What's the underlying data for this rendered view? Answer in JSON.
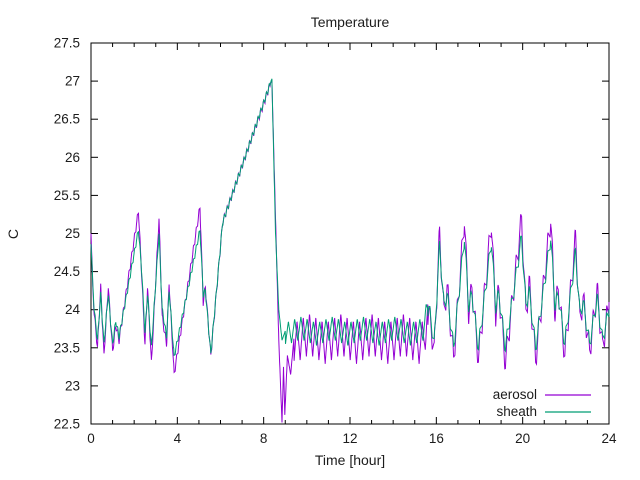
{
  "chart_data": {
    "type": "line",
    "title": "Temperature",
    "xlabel": "Time [hour]",
    "ylabel": "C",
    "xlim": [
      0,
      24
    ],
    "ylim": [
      22.5,
      27.5
    ],
    "xtick_values": [
      0,
      4,
      8,
      12,
      16,
      20,
      24
    ],
    "xtick_labels": [
      "0",
      "4",
      "8",
      "12",
      "16",
      "20",
      "24"
    ],
    "xtick_minor_step": 1,
    "ytick_values": [
      22.5,
      23,
      23.5,
      24,
      24.5,
      25,
      25.5,
      26,
      26.5,
      27,
      27.5
    ],
    "ytick_labels": [
      "22.5",
      "23",
      "23.5",
      "24",
      "24.5",
      "25",
      "25.5",
      "26",
      "26.5",
      "27",
      "27.5"
    ],
    "grid": false,
    "legend": {
      "position": "inside-bottom-right",
      "entries": [
        "aerosol",
        "sheath"
      ]
    },
    "colors": {
      "aerosol": "#9400d3",
      "sheath": "#009e73",
      "axis": "#000000",
      "text": "#1c1c1c",
      "background": "#ffffff"
    },
    "sample_step_hours": 0.01,
    "series": [
      {
        "name": "aerosol",
        "color_key": "aerosol",
        "keypoints": [
          [
            0,
            25.05
          ],
          [
            0.08,
            24.3
          ],
          [
            0.15,
            23.95
          ],
          [
            0.3,
            23.5
          ],
          [
            0.45,
            24.3
          ],
          [
            0.6,
            23.4
          ],
          [
            0.8,
            24.3
          ],
          [
            1.0,
            23.45
          ],
          [
            1.15,
            23.8
          ],
          [
            1.3,
            23.6
          ],
          [
            2.2,
            25.3
          ],
          [
            2.35,
            24.45
          ],
          [
            2.5,
            23.55
          ],
          [
            2.62,
            24.3
          ],
          [
            2.8,
            23.3
          ],
          [
            3.15,
            25.2
          ],
          [
            3.3,
            23.9
          ],
          [
            3.5,
            23.55
          ],
          [
            3.62,
            24.35
          ],
          [
            3.85,
            23.15
          ],
          [
            5.05,
            25.35
          ],
          [
            5.2,
            24.1
          ],
          [
            5.3,
            24.3
          ],
          [
            5.55,
            23.4
          ],
          [
            6.1,
            25.15
          ],
          [
            8.38,
            27.02
          ],
          [
            8.55,
            25.2
          ],
          [
            8.7,
            23.6
          ],
          [
            8.85,
            22.52
          ],
          [
            8.92,
            23.25
          ],
          [
            8.98,
            22.62
          ],
          [
            9.1,
            23.4
          ],
          [
            9.25,
            23.15
          ],
          [
            9.4,
            23.62
          ],
          [
            15.4,
            23.62
          ],
          [
            15.65,
            24.0
          ],
          [
            15.9,
            23.45
          ],
          [
            16.15,
            25.0
          ],
          [
            16.35,
            23.95
          ],
          [
            16.5,
            24.3
          ],
          [
            16.8,
            23.35
          ],
          [
            17.3,
            25.2
          ],
          [
            17.5,
            23.95
          ],
          [
            17.65,
            24.3
          ],
          [
            17.95,
            23.35
          ],
          [
            18.55,
            25.15
          ],
          [
            18.75,
            23.95
          ],
          [
            18.9,
            24.25
          ],
          [
            19.2,
            23.3
          ],
          [
            19.95,
            25.2
          ],
          [
            20.15,
            23.95
          ],
          [
            20.3,
            24.35
          ],
          [
            20.6,
            23.35
          ],
          [
            21.3,
            25.2
          ],
          [
            21.5,
            23.95
          ],
          [
            21.65,
            24.3
          ],
          [
            21.95,
            23.4
          ],
          [
            22.45,
            24.95
          ],
          [
            22.65,
            23.85
          ],
          [
            22.8,
            24.15
          ],
          [
            23.1,
            23.45
          ],
          [
            23.45,
            24.25
          ],
          [
            23.7,
            23.5
          ],
          [
            24,
            24.1
          ]
        ],
        "oscillations": [
          {
            "from": 0,
            "to": 8.3,
            "period": 0.13,
            "amp": 0.05
          },
          {
            "from": 9.4,
            "to": 15.6,
            "period": 0.29,
            "amp": 0.27
          },
          {
            "from": 9.4,
            "to": 15.6,
            "period": 1.45,
            "amp": 0.06
          },
          {
            "from": 15.6,
            "to": 24,
            "period": 0.21,
            "amp": 0.17
          }
        ]
      },
      {
        "name": "sheath",
        "color_key": "sheath",
        "keypoints": [
          [
            0,
            24.9
          ],
          [
            0.08,
            24.35
          ],
          [
            0.15,
            24.0
          ],
          [
            0.3,
            23.6
          ],
          [
            0.45,
            24.2
          ],
          [
            0.6,
            23.55
          ],
          [
            0.8,
            24.2
          ],
          [
            1.0,
            23.55
          ],
          [
            1.15,
            23.85
          ],
          [
            1.3,
            23.65
          ],
          [
            2.2,
            25.05
          ],
          [
            2.35,
            24.5
          ],
          [
            2.5,
            23.7
          ],
          [
            2.62,
            24.2
          ],
          [
            2.8,
            23.5
          ],
          [
            3.15,
            25.0
          ],
          [
            3.3,
            24.0
          ],
          [
            3.5,
            23.65
          ],
          [
            3.62,
            24.25
          ],
          [
            3.85,
            23.38
          ],
          [
            5.05,
            25.05
          ],
          [
            5.2,
            24.2
          ],
          [
            5.3,
            24.25
          ],
          [
            5.55,
            23.42
          ],
          [
            6.1,
            25.15
          ],
          [
            8.38,
            27.03
          ],
          [
            8.55,
            25.0
          ],
          [
            8.7,
            24.0
          ],
          [
            8.85,
            23.6
          ],
          [
            9.0,
            23.72
          ],
          [
            15.4,
            23.72
          ],
          [
            15.65,
            24.05
          ],
          [
            15.9,
            23.55
          ],
          [
            16.15,
            24.85
          ],
          [
            16.35,
            24.05
          ],
          [
            16.5,
            24.2
          ],
          [
            16.8,
            23.5
          ],
          [
            17.3,
            24.95
          ],
          [
            17.5,
            24.05
          ],
          [
            17.65,
            24.2
          ],
          [
            17.95,
            23.5
          ],
          [
            18.55,
            24.9
          ],
          [
            18.75,
            24.05
          ],
          [
            18.9,
            24.2
          ],
          [
            19.2,
            23.5
          ],
          [
            19.95,
            24.95
          ],
          [
            20.15,
            24.05
          ],
          [
            20.3,
            24.25
          ],
          [
            20.6,
            23.5
          ],
          [
            21.3,
            24.95
          ],
          [
            21.5,
            24.05
          ],
          [
            21.65,
            24.2
          ],
          [
            21.95,
            23.55
          ],
          [
            22.45,
            24.75
          ],
          [
            22.65,
            23.95
          ],
          [
            22.8,
            24.1
          ],
          [
            23.1,
            23.55
          ],
          [
            23.45,
            24.15
          ],
          [
            23.7,
            23.6
          ],
          [
            24,
            24.0
          ]
        ],
        "oscillations": [
          {
            "from": 0,
            "to": 8.3,
            "period": 0.13,
            "amp": 0.04
          },
          {
            "from": 9.0,
            "to": 15.6,
            "period": 0.29,
            "amp": 0.15
          },
          {
            "from": 9.0,
            "to": 15.6,
            "period": 1.45,
            "amp": 0.04
          },
          {
            "from": 15.6,
            "to": 24,
            "period": 0.21,
            "amp": 0.1
          }
        ]
      }
    ]
  }
}
